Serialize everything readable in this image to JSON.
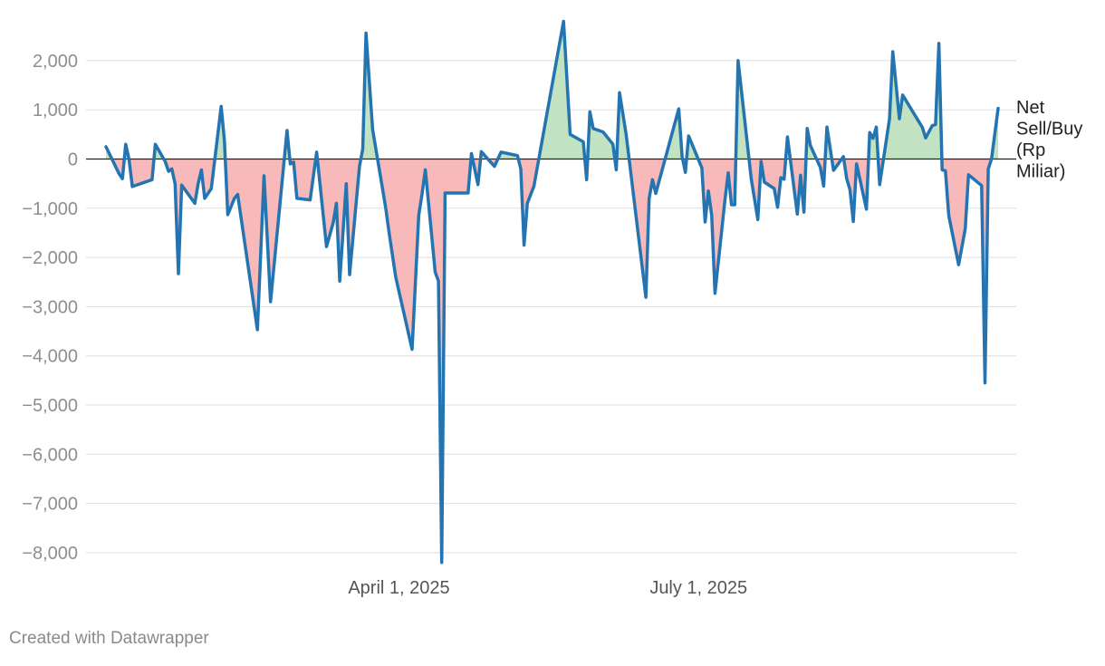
{
  "chart_data": {
    "type": "area",
    "title": "",
    "xlabel": "",
    "ylabel": "",
    "ylim": [
      -8000,
      2700
    ],
    "yticks": [
      2000,
      1000,
      0,
      -1000,
      -2000,
      -3000,
      -4000,
      -5000,
      -6000,
      -7000,
      -8000
    ],
    "ytick_labels": [
      "2,000",
      "1,000",
      "0",
      "−1,000",
      "−2,000",
      "−3,000",
      "−4,000",
      "−5,000",
      "−6,000",
      "−7,000",
      "−8,000"
    ],
    "xticks": [
      {
        "label": "April 1, 2025",
        "date": "2025-04-01"
      },
      {
        "label": "July 1, 2025",
        "date": "2025-07-01"
      }
    ],
    "xlim": [
      "2025-01-02",
      "2025-09-30"
    ],
    "grid": true,
    "positive_fill": "#c2e3c1",
    "negative_fill": "#f7b9b9",
    "line_color": "#2474b2",
    "series": [
      {
        "name": "Net Sell/Buy (Rp Miliar)",
        "points": [
          [
            "2025-01-02",
            250
          ],
          [
            "2025-01-06",
            -300
          ],
          [
            "2025-01-07",
            -400
          ],
          [
            "2025-01-08",
            300
          ],
          [
            "2025-01-09",
            0
          ],
          [
            "2025-01-10",
            -560
          ],
          [
            "2025-01-16",
            -420
          ],
          [
            "2025-01-17",
            300
          ],
          [
            "2025-01-20",
            -50
          ],
          [
            "2025-01-21",
            -250
          ],
          [
            "2025-01-22",
            -200
          ],
          [
            "2025-01-23",
            -500
          ],
          [
            "2025-01-24",
            -2330
          ],
          [
            "2025-01-25",
            -530
          ],
          [
            "2025-01-29",
            -900
          ],
          [
            "2025-01-30",
            -500
          ],
          [
            "2025-01-31",
            -220
          ],
          [
            "2025-02-01",
            -800
          ],
          [
            "2025-02-03",
            -600
          ],
          [
            "2025-02-06",
            1070
          ],
          [
            "2025-02-07",
            370
          ],
          [
            "2025-02-08",
            -1130
          ],
          [
            "2025-02-10",
            -800
          ],
          [
            "2025-02-11",
            -720
          ],
          [
            "2025-02-17",
            -3470
          ],
          [
            "2025-02-19",
            -340
          ],
          [
            "2025-02-21",
            -2900
          ],
          [
            "2025-02-26",
            580
          ],
          [
            "2025-02-27",
            -100
          ],
          [
            "2025-02-28",
            -60
          ],
          [
            "2025-03-01",
            -800
          ],
          [
            "2025-03-05",
            -830
          ],
          [
            "2025-03-07",
            140
          ],
          [
            "2025-03-10",
            -1780
          ],
          [
            "2025-03-12",
            -1300
          ],
          [
            "2025-03-13",
            -900
          ],
          [
            "2025-03-14",
            -2480
          ],
          [
            "2025-03-16",
            -500
          ],
          [
            "2025-03-17",
            -2350
          ],
          [
            "2025-03-20",
            -150
          ],
          [
            "2025-03-21",
            200
          ],
          [
            "2025-03-22",
            2560
          ],
          [
            "2025-03-24",
            600
          ],
          [
            "2025-03-27",
            -600
          ],
          [
            "2025-03-28",
            -1000
          ],
          [
            "2025-03-29",
            -1500
          ],
          [
            "2025-03-31",
            -2400
          ],
          [
            "2025-04-05",
            -3870
          ],
          [
            "2025-04-07",
            -1150
          ],
          [
            "2025-04-08",
            -720
          ],
          [
            "2025-04-09",
            -220
          ],
          [
            "2025-04-12",
            -2300
          ],
          [
            "2025-04-13",
            -2480
          ],
          [
            "2025-04-14",
            -8200
          ],
          [
            "2025-04-15",
            -690
          ],
          [
            "2025-04-22",
            -690
          ],
          [
            "2025-04-23",
            110
          ],
          [
            "2025-04-25",
            -520
          ],
          [
            "2025-04-26",
            150
          ],
          [
            "2025-04-30",
            -150
          ],
          [
            "2025-05-02",
            140
          ],
          [
            "2025-05-07",
            70
          ],
          [
            "2025-05-08",
            -200
          ],
          [
            "2025-05-09",
            -1750
          ],
          [
            "2025-05-10",
            -900
          ],
          [
            "2025-05-12",
            -550
          ],
          [
            "2025-05-21",
            2800
          ],
          [
            "2025-05-23",
            500
          ],
          [
            "2025-05-27",
            350
          ],
          [
            "2025-05-28",
            -420
          ],
          [
            "2025-05-29",
            960
          ],
          [
            "2025-05-30",
            620
          ],
          [
            "2025-06-02",
            550
          ],
          [
            "2025-06-05",
            300
          ],
          [
            "2025-06-06",
            -220
          ],
          [
            "2025-06-07",
            1350
          ],
          [
            "2025-06-09",
            500
          ],
          [
            "2025-06-15",
            -2810
          ],
          [
            "2025-06-16",
            -800
          ],
          [
            "2025-06-17",
            -420
          ],
          [
            "2025-06-18",
            -700
          ],
          [
            "2025-06-25",
            1020
          ],
          [
            "2025-06-26",
            50
          ],
          [
            "2025-06-27",
            -270
          ],
          [
            "2025-06-28",
            470
          ],
          [
            "2025-07-02",
            -180
          ],
          [
            "2025-07-03",
            -1280
          ],
          [
            "2025-07-04",
            -650
          ],
          [
            "2025-07-05",
            -1150
          ],
          [
            "2025-07-06",
            -2730
          ],
          [
            "2025-07-09",
            -850
          ],
          [
            "2025-07-10",
            -280
          ],
          [
            "2025-07-11",
            -930
          ],
          [
            "2025-07-12",
            -930
          ],
          [
            "2025-07-13",
            2000
          ],
          [
            "2025-07-17",
            -400
          ],
          [
            "2025-07-19",
            -1230
          ],
          [
            "2025-07-20",
            -50
          ],
          [
            "2025-07-21",
            -470
          ],
          [
            "2025-07-24",
            -600
          ],
          [
            "2025-07-25",
            -980
          ],
          [
            "2025-07-26",
            -380
          ],
          [
            "2025-07-27",
            -410
          ],
          [
            "2025-07-28",
            450
          ],
          [
            "2025-07-31",
            -1120
          ],
          [
            "2025-08-01",
            -330
          ],
          [
            "2025-08-02",
            -1080
          ],
          [
            "2025-08-03",
            620
          ],
          [
            "2025-08-04",
            270
          ],
          [
            "2025-08-07",
            -170
          ],
          [
            "2025-08-08",
            -550
          ],
          [
            "2025-08-09",
            650
          ],
          [
            "2025-08-11",
            -230
          ],
          [
            "2025-08-14",
            50
          ],
          [
            "2025-08-15",
            -400
          ],
          [
            "2025-08-16",
            -620
          ],
          [
            "2025-08-17",
            -1270
          ],
          [
            "2025-08-18",
            -100
          ],
          [
            "2025-08-21",
            -1020
          ],
          [
            "2025-08-22",
            540
          ],
          [
            "2025-08-23",
            420
          ],
          [
            "2025-08-24",
            650
          ],
          [
            "2025-08-25",
            -520
          ],
          [
            "2025-08-28",
            820
          ],
          [
            "2025-08-29",
            2180
          ],
          [
            "2025-08-31",
            820
          ],
          [
            "2025-09-01",
            1300
          ],
          [
            "2025-09-06",
            750
          ],
          [
            "2025-09-07",
            640
          ],
          [
            "2025-09-08",
            430
          ],
          [
            "2025-09-10",
            680
          ],
          [
            "2025-09-11",
            700
          ],
          [
            "2025-09-12",
            2350
          ],
          [
            "2025-09-13",
            -220
          ],
          [
            "2025-09-14",
            -240
          ],
          [
            "2025-09-15",
            -1150
          ],
          [
            "2025-09-18",
            -2150
          ],
          [
            "2025-09-20",
            -1420
          ],
          [
            "2025-09-21",
            -320
          ],
          [
            "2025-09-25",
            -540
          ],
          [
            "2025-09-26",
            -4550
          ],
          [
            "2025-09-27",
            -200
          ],
          [
            "2025-09-28",
            0
          ],
          [
            "2025-09-30",
            1030
          ]
        ]
      }
    ],
    "series_label": [
      "Net",
      "Sell/Buy",
      "(Rp",
      "Miliar)"
    ]
  },
  "footer": {
    "credit": "Created with Datawrapper"
  }
}
